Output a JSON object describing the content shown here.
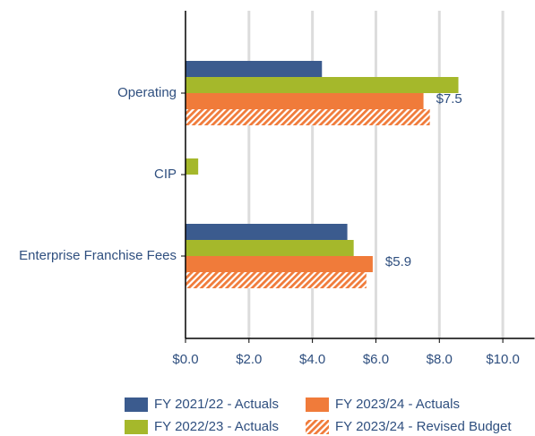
{
  "chart_data": {
    "type": "hbar",
    "categories": [
      "Operating",
      "CIP",
      "Enterprise Franchise Fees"
    ],
    "series": [
      {
        "name": "FY 2021/22 - Actuals",
        "color": "#3b5b8e",
        "values": [
          4.3,
          0,
          5.1
        ]
      },
      {
        "name": "FY 2022/23 - Actuals",
        "color": "#a5b82b",
        "values": [
          8.6,
          0.4,
          5.3
        ]
      },
      {
        "name": "FY 2023/24 - Actuals",
        "color": "#f07b3a",
        "values": [
          7.5,
          0,
          5.9
        ],
        "value_labels": [
          "$7.5",
          null,
          "$5.9"
        ]
      },
      {
        "name": "FY 2023/24 - Revised Budget",
        "color": "#f07b3a",
        "hatch": true,
        "values": [
          7.7,
          0,
          5.7
        ]
      }
    ],
    "xlim": [
      0,
      11
    ],
    "xticks": [
      {
        "value": 0,
        "label": "$0.0"
      },
      {
        "value": 2,
        "label": "$2.0"
      },
      {
        "value": 4,
        "label": "$4.0"
      },
      {
        "value": 6,
        "label": "$6.0"
      },
      {
        "value": 8,
        "label": "$8.0"
      },
      {
        "value": 10,
        "label": "$10.0"
      }
    ],
    "grid": true
  }
}
